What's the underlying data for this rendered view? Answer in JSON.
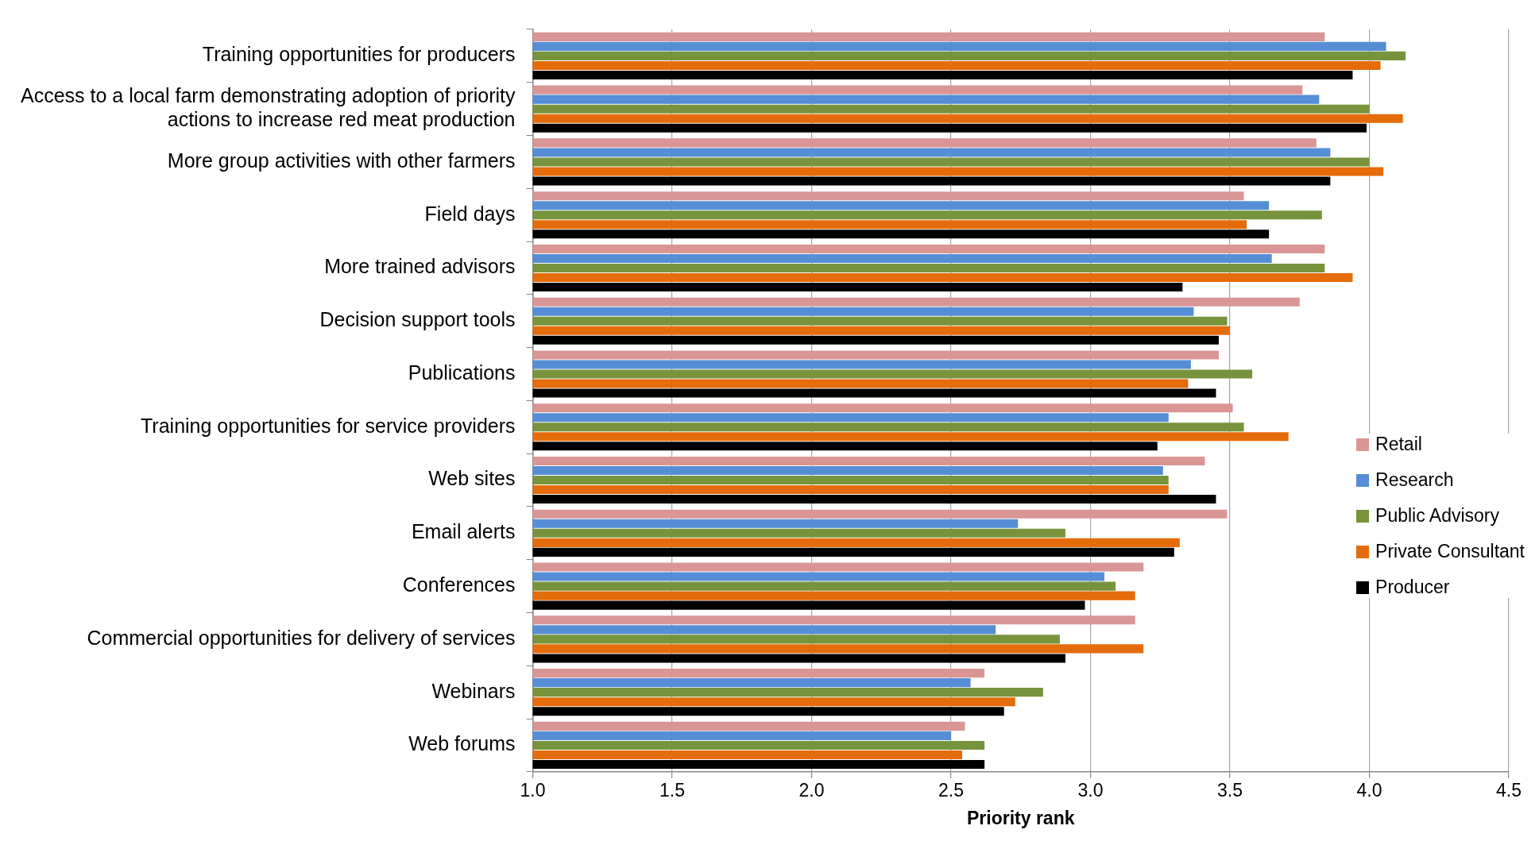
{
  "chart_data": {
    "type": "bar",
    "orientation": "horizontal",
    "xlabel": "Priority rank",
    "categories": [
      "Training opportunities for producers",
      "Access to a local farm demonstrating adoption of priority actions to increase red meat production",
      "More group activities with other farmers",
      "Field days",
      "More trained advisors",
      "Decision support tools",
      "Publications",
      "Training opportunities for service providers",
      "Web sites",
      "Email alerts",
      "Conferences",
      "Commercial opportunities for delivery of services",
      "Webinars",
      "Web forums"
    ],
    "series": [
      {
        "name": "Retail",
        "color": "#d99694",
        "values": [
          3.84,
          3.76,
          3.81,
          3.55,
          3.84,
          3.75,
          3.46,
          3.51,
          3.41,
          3.49,
          3.19,
          3.16,
          2.62,
          2.55
        ]
      },
      {
        "name": "Research",
        "color": "#558ed5",
        "values": [
          4.06,
          3.82,
          3.86,
          3.64,
          3.65,
          3.37,
          3.36,
          3.28,
          3.26,
          2.74,
          3.05,
          2.66,
          2.57,
          2.5
        ]
      },
      {
        "name": "Public Advisory",
        "color": "#77933c",
        "values": [
          4.13,
          4.0,
          4.0,
          3.83,
          3.84,
          3.49,
          3.58,
          3.55,
          3.28,
          2.91,
          3.09,
          2.89,
          2.83,
          2.62
        ]
      },
      {
        "name": "Private Consultant",
        "color": "#e46c0a",
        "values": [
          4.04,
          4.12,
          4.05,
          3.56,
          3.94,
          3.5,
          3.35,
          3.71,
          3.28,
          3.32,
          3.16,
          3.19,
          2.73,
          2.54
        ]
      },
      {
        "name": "Producer",
        "color": "#000000",
        "values": [
          3.94,
          3.99,
          3.86,
          3.64,
          3.33,
          3.46,
          3.45,
          3.24,
          3.45,
          3.3,
          2.98,
          2.91,
          2.69,
          2.62
        ]
      }
    ],
    "xlim": [
      1.0,
      4.5
    ],
    "xticks": [
      {
        "value": 1.0,
        "label": "1.0"
      },
      {
        "value": 1.5,
        "label": "1.5"
      },
      {
        "value": 2.0,
        "label": "2.0"
      },
      {
        "value": 2.5,
        "label": "2.5"
      },
      {
        "value": 3.0,
        "label": "3.0"
      },
      {
        "value": 3.5,
        "label": "3.5"
      },
      {
        "value": 4.0,
        "label": "4.0"
      },
      {
        "value": 4.5,
        "label": "4.5"
      }
    ],
    "grid": "x",
    "legend": "bottom right"
  }
}
